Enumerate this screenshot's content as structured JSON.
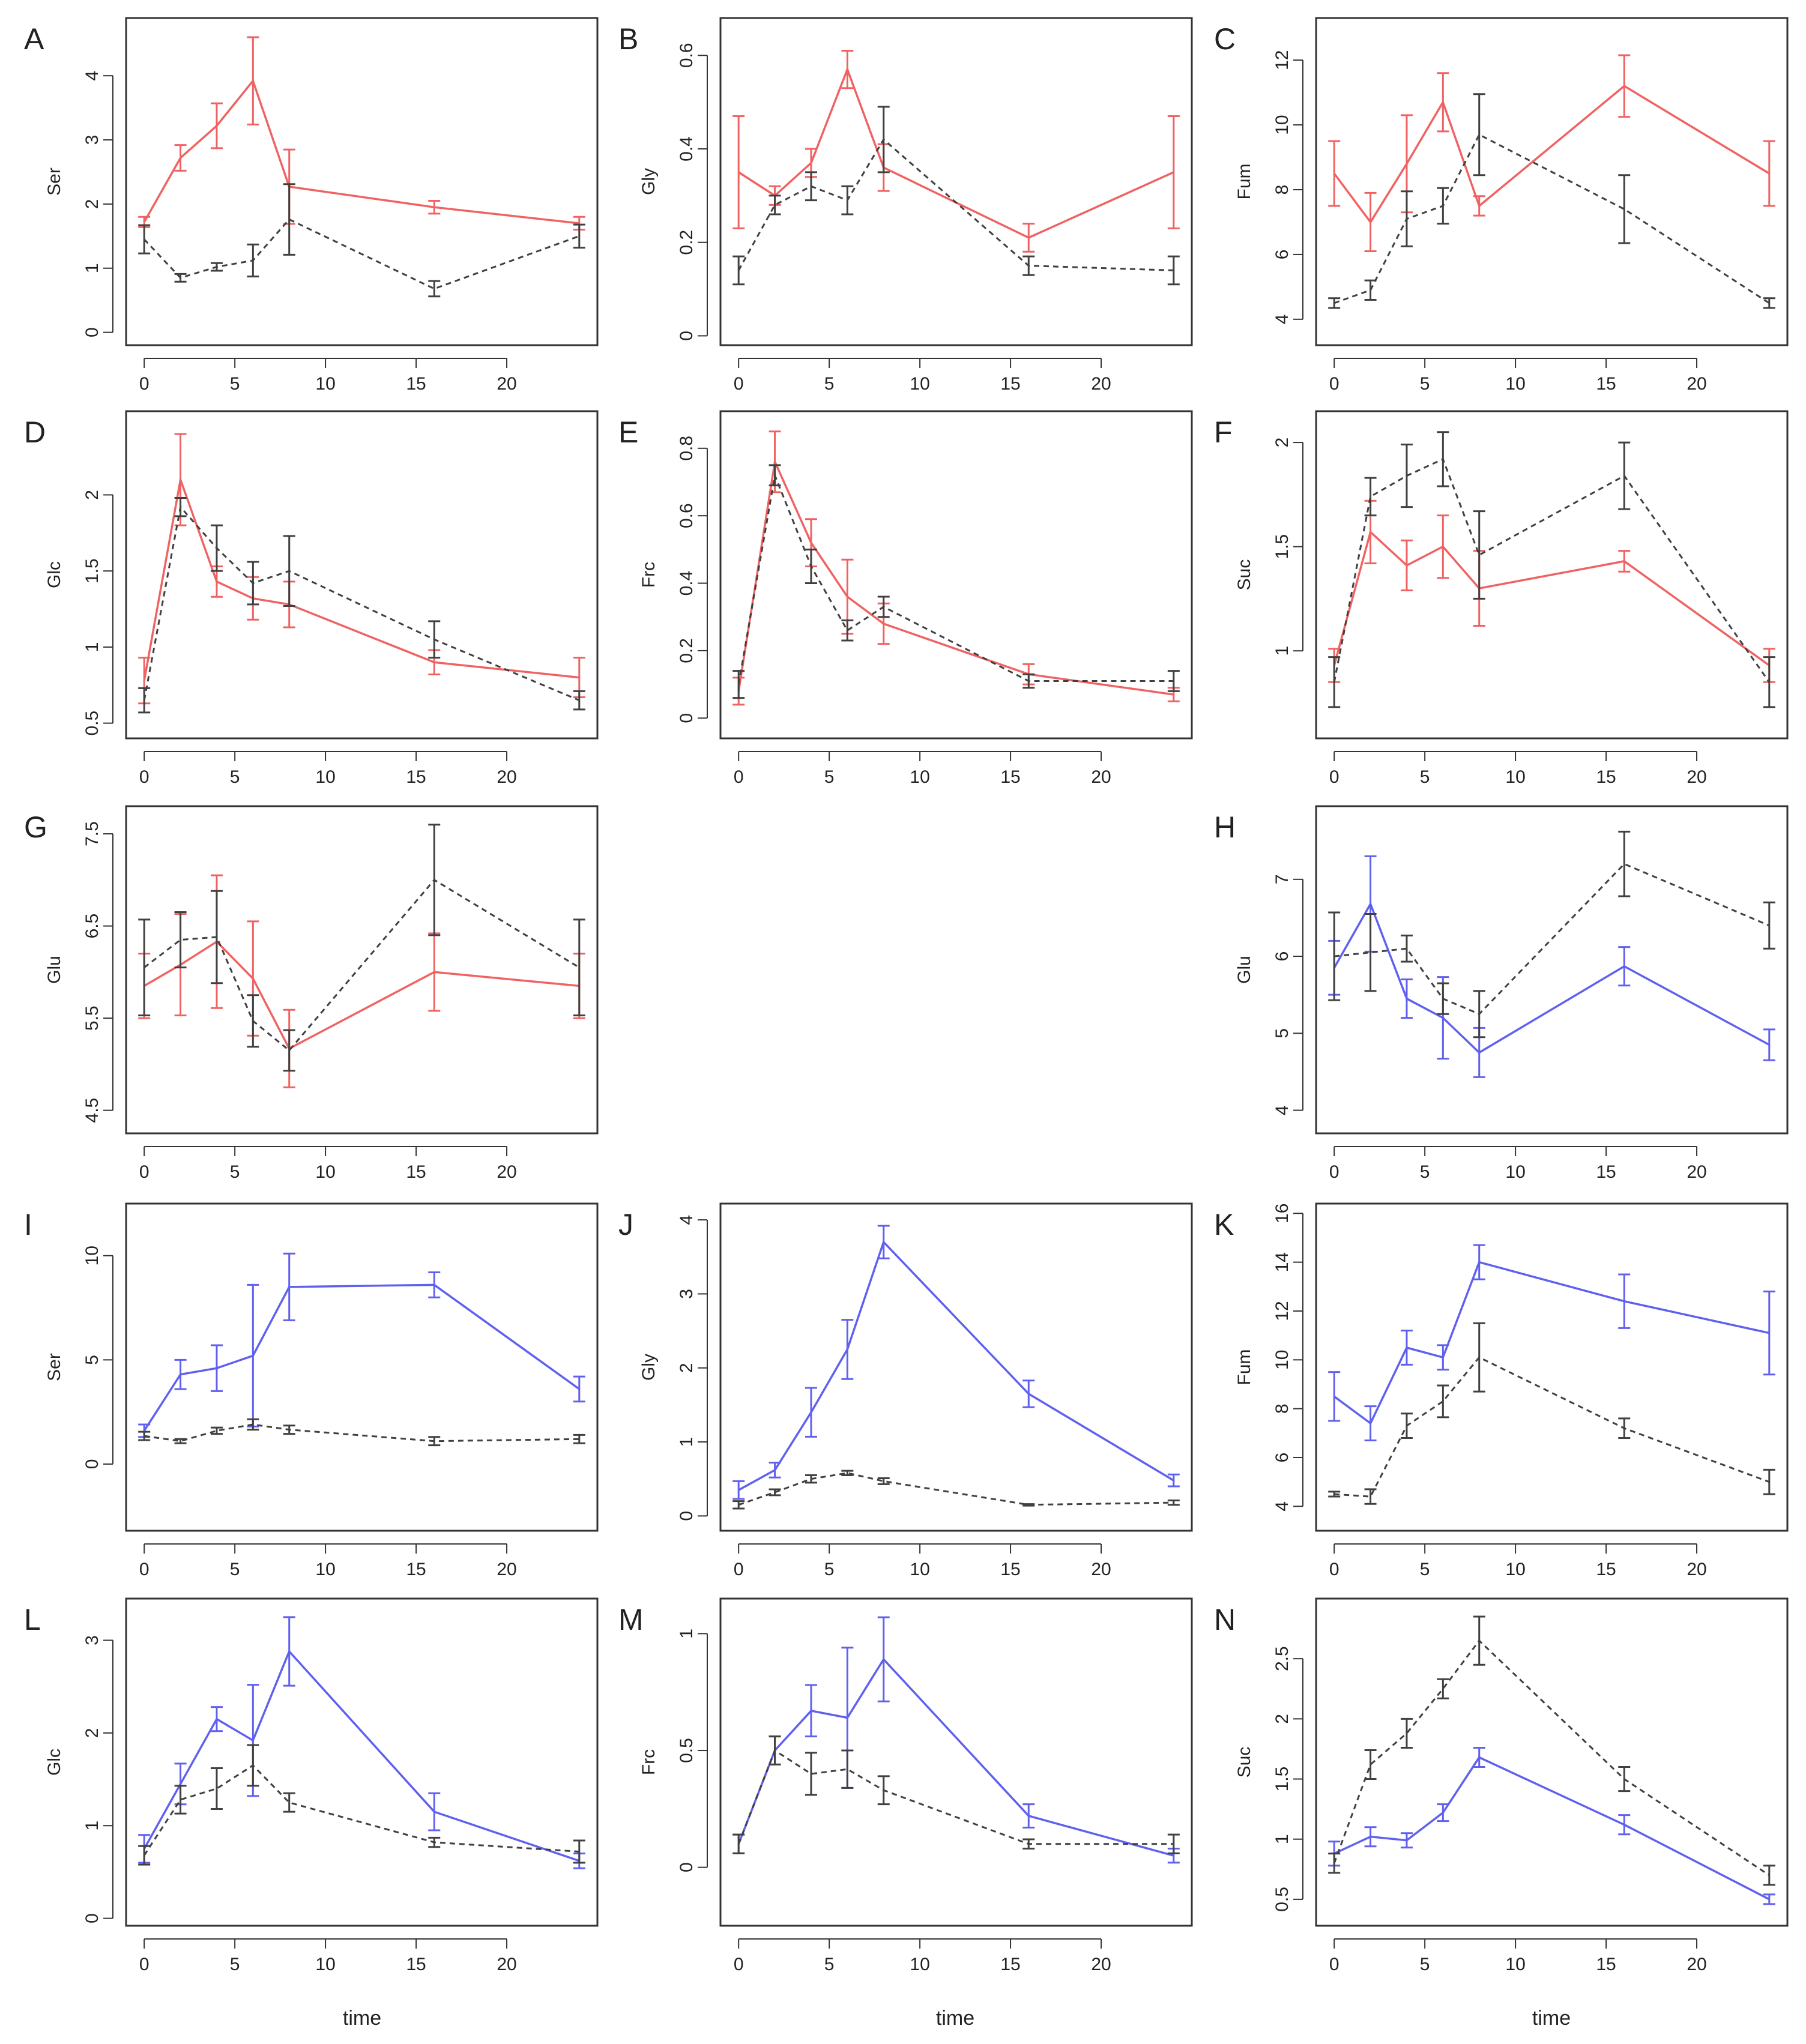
{
  "colors": {
    "treated": "#f06262",
    "treated_blue": "#6060f0",
    "control": "#404040",
    "frame": "#333333"
  },
  "x_label": "time",
  "chart_data": [
    {
      "panel": "A",
      "type": "line",
      "ylabel": "Ser",
      "x": [
        0,
        2,
        4,
        6,
        8,
        16,
        24
      ],
      "xticks": [
        0,
        5,
        10,
        15,
        20
      ],
      "xlim": [
        -1,
        25
      ],
      "ylim": [
        -0.2,
        4.9
      ],
      "yticks": [
        0,
        1,
        2,
        3,
        4
      ],
      "series": [
        {
          "style": "treated",
          "color": "#f06262",
          "values": [
            1.72,
            2.72,
            3.22,
            3.92,
            2.27,
            1.95,
            1.7
          ],
          "errors": [
            0.08,
            0.2,
            0.35,
            0.68,
            0.58,
            0.1,
            0.1
          ]
        },
        {
          "style": "control",
          "color": "#404040",
          "values": [
            1.45,
            0.85,
            1.02,
            1.12,
            1.76,
            0.68,
            1.5
          ],
          "errors": [
            0.22,
            0.06,
            0.06,
            0.25,
            0.55,
            0.12,
            0.18
          ]
        }
      ]
    },
    {
      "panel": "B",
      "type": "line",
      "ylabel": "Gly",
      "x": [
        0,
        2,
        4,
        6,
        8,
        16,
        24
      ],
      "xticks": [
        0,
        5,
        10,
        15,
        20
      ],
      "xlim": [
        -1,
        25
      ],
      "ylim": [
        -0.02,
        0.68
      ],
      "yticks": [
        0.0,
        0.2,
        0.4,
        0.6
      ],
      "series": [
        {
          "style": "treated",
          "color": "#f06262",
          "values": [
            0.35,
            0.3,
            0.37,
            0.57,
            0.36,
            0.21,
            0.35
          ],
          "errors": [
            0.12,
            0.02,
            0.03,
            0.04,
            0.05,
            0.03,
            0.12
          ]
        },
        {
          "style": "control",
          "color": "#404040",
          "values": [
            0.14,
            0.28,
            0.32,
            0.29,
            0.42,
            0.15,
            0.14
          ],
          "errors": [
            0.03,
            0.02,
            0.03,
            0.03,
            0.07,
            0.02,
            0.03
          ]
        }
      ]
    },
    {
      "panel": "C",
      "type": "line",
      "ylabel": "Fum",
      "x": [
        0,
        2,
        4,
        6,
        8,
        16,
        24
      ],
      "xticks": [
        0,
        5,
        10,
        15,
        20
      ],
      "xlim": [
        -1,
        25
      ],
      "ylim": [
        3.2,
        13.3
      ],
      "yticks": [
        4,
        6,
        8,
        10,
        12
      ],
      "series": [
        {
          "style": "treated",
          "color": "#f06262",
          "values": [
            8.5,
            7,
            8.8,
            10.7,
            7.5,
            11.2,
            8.5
          ],
          "errors": [
            1.0,
            0.9,
            1.5,
            0.9,
            0.3,
            0.95,
            1.0
          ]
        },
        {
          "style": "control",
          "color": "#404040",
          "values": [
            4.5,
            4.9,
            7.1,
            7.5,
            9.7,
            7.4,
            4.5
          ],
          "errors": [
            0.15,
            0.3,
            0.85,
            0.55,
            1.25,
            1.05,
            0.15
          ]
        }
      ]
    },
    {
      "panel": "D",
      "type": "line",
      "ylabel": "Glc",
      "x": [
        0,
        2,
        4,
        6,
        8,
        16,
        24
      ],
      "xticks": [
        0,
        5,
        10,
        15,
        20
      ],
      "xlim": [
        -1,
        25
      ],
      "ylim": [
        0.4,
        2.55
      ],
      "yticks": [
        0.5,
        1.0,
        1.5,
        2.0
      ],
      "series": [
        {
          "style": "treated",
          "color": "#f06262",
          "values": [
            0.78,
            2.1,
            1.43,
            1.32,
            1.28,
            0.9,
            0.8
          ],
          "errors": [
            0.15,
            0.3,
            0.1,
            0.14,
            0.15,
            0.08,
            0.13
          ]
        },
        {
          "style": "control",
          "color": "#404040",
          "values": [
            0.65,
            1.92,
            1.65,
            1.42,
            1.5,
            1.05,
            0.65
          ],
          "errors": [
            0.08,
            0.06,
            0.15,
            0.14,
            0.23,
            0.12,
            0.06
          ]
        }
      ]
    },
    {
      "panel": "E",
      "type": "line",
      "ylabel": "Frc",
      "x": [
        0,
        2,
        4,
        6,
        8,
        16,
        24
      ],
      "xticks": [
        0,
        5,
        10,
        15,
        20
      ],
      "xlim": [
        -1,
        25
      ],
      "ylim": [
        -0.06,
        0.91
      ],
      "yticks": [
        0.0,
        0.2,
        0.4,
        0.6,
        0.8
      ],
      "series": [
        {
          "style": "treated",
          "color": "#f06262",
          "values": [
            0.08,
            0.76,
            0.52,
            0.36,
            0.28,
            0.13,
            0.07
          ],
          "errors": [
            0.04,
            0.09,
            0.07,
            0.11,
            0.06,
            0.03,
            0.02
          ]
        },
        {
          "style": "control",
          "color": "#404040",
          "values": [
            0.1,
            0.72,
            0.45,
            0.26,
            0.33,
            0.11,
            0.11
          ],
          "errors": [
            0.04,
            0.03,
            0.05,
            0.03,
            0.03,
            0.02,
            0.03
          ]
        }
      ]
    },
    {
      "panel": "F",
      "type": "line",
      "ylabel": "Suc",
      "x": [
        0,
        2,
        4,
        6,
        8,
        16,
        24
      ],
      "xticks": [
        0,
        5,
        10,
        15,
        20
      ],
      "xlim": [
        -1,
        25
      ],
      "ylim": [
        0.58,
        2.15
      ],
      "yticks": [
        1.0,
        1.5,
        2.0
      ],
      "series": [
        {
          "style": "treated",
          "color": "#f06262",
          "values": [
            0.93,
            1.57,
            1.41,
            1.5,
            1.3,
            1.43,
            0.93
          ],
          "errors": [
            0.08,
            0.15,
            0.12,
            0.15,
            0.18,
            0.05,
            0.08
          ]
        },
        {
          "style": "control",
          "color": "#404040",
          "values": [
            0.85,
            1.74,
            1.84,
            1.92,
            1.46,
            1.84,
            0.85
          ],
          "errors": [
            0.12,
            0.09,
            0.15,
            0.13,
            0.21,
            0.16,
            0.12
          ]
        }
      ]
    },
    {
      "panel": "G",
      "type": "line",
      "ylabel": "Glu",
      "x": [
        0,
        2,
        4,
        6,
        8,
        16,
        24
      ],
      "xticks": [
        0,
        5,
        10,
        15,
        20
      ],
      "xlim": [
        -1,
        25
      ],
      "ylim": [
        4.25,
        7.8
      ],
      "yticks": [
        4.5,
        5.5,
        6.5,
        7.5
      ],
      "series": [
        {
          "style": "treated",
          "color": "#f06262",
          "values": [
            5.85,
            6.08,
            6.33,
            5.93,
            5.17,
            6.0,
            5.85
          ],
          "errors": [
            0.35,
            0.55,
            0.72,
            0.62,
            0.42,
            0.42,
            0.35
          ]
        },
        {
          "style": "control",
          "color": "#404040",
          "values": [
            6.05,
            6.35,
            6.38,
            5.47,
            5.15,
            7.0,
            6.05
          ],
          "errors": [
            0.52,
            0.3,
            0.5,
            0.28,
            0.22,
            0.6,
            0.52
          ]
        }
      ]
    },
    {
      "panel": "H",
      "type": "line",
      "ylabel": "Glu",
      "x": [
        0,
        2,
        4,
        6,
        8,
        16,
        24
      ],
      "xticks": [
        0,
        5,
        10,
        15,
        20
      ],
      "xlim": [
        -1,
        25
      ],
      "ylim": [
        3.7,
        7.95
      ],
      "yticks": [
        4,
        5,
        6,
        7
      ],
      "series": [
        {
          "style": "treated",
          "color": "#6060f0",
          "values": [
            5.85,
            6.68,
            5.45,
            5.2,
            4.75,
            5.87,
            4.85
          ],
          "errors": [
            0.35,
            0.62,
            0.25,
            0.53,
            0.32,
            0.25,
            0.2
          ]
        },
        {
          "style": "control",
          "color": "#404040",
          "values": [
            6.0,
            6.05,
            6.1,
            5.45,
            5.25,
            7.2,
            6.4
          ],
          "errors": [
            0.57,
            0.5,
            0.17,
            0.2,
            0.3,
            0.42,
            0.3
          ]
        }
      ]
    },
    {
      "panel": "I",
      "type": "line",
      "ylabel": "Ser",
      "x": [
        0,
        2,
        4,
        6,
        8,
        16,
        24
      ],
      "xticks": [
        0,
        5,
        10,
        15,
        20
      ],
      "xlim": [
        -1,
        25
      ],
      "ylim": [
        -3.2,
        12.5
      ],
      "yticks": [
        0,
        5,
        10
      ],
      "series": [
        {
          "style": "treated",
          "color": "#6060f0",
          "values": [
            1.6,
            4.3,
            4.6,
            5.2,
            8.5,
            8.6,
            3.6
          ],
          "errors": [
            0.3,
            0.7,
            1.1,
            3.4,
            1.6,
            0.6,
            0.6
          ]
        },
        {
          "style": "control",
          "color": "#404040",
          "values": [
            1.35,
            1.1,
            1.6,
            1.9,
            1.65,
            1.1,
            1.2
          ],
          "errors": [
            0.2,
            0.1,
            0.15,
            0.25,
            0.2,
            0.2,
            0.2
          ]
        }
      ]
    },
    {
      "panel": "J",
      "type": "line",
      "ylabel": "Gly",
      "x": [
        0,
        2,
        4,
        6,
        8,
        16,
        24
      ],
      "xticks": [
        0,
        5,
        10,
        15,
        20
      ],
      "xlim": [
        -1,
        25
      ],
      "ylim": [
        -0.2,
        4.22
      ],
      "yticks": [
        0,
        1,
        2,
        3,
        4
      ],
      "series": [
        {
          "style": "treated",
          "color": "#6060f0",
          "values": [
            0.35,
            0.62,
            1.4,
            2.25,
            3.7,
            1.65,
            0.48
          ],
          "errors": [
            0.12,
            0.1,
            0.33,
            0.4,
            0.22,
            0.18,
            0.08
          ]
        },
        {
          "style": "control",
          "color": "#404040",
          "values": [
            0.15,
            0.32,
            0.5,
            0.58,
            0.47,
            0.15,
            0.18
          ],
          "errors": [
            0.05,
            0.04,
            0.05,
            0.03,
            0.04,
            0.01,
            0.03
          ]
        }
      ]
    },
    {
      "panel": "K",
      "type": "line",
      "ylabel": "Fum",
      "x": [
        0,
        2,
        4,
        6,
        8,
        16,
        24
      ],
      "xticks": [
        0,
        5,
        10,
        15,
        20
      ],
      "xlim": [
        -1,
        25
      ],
      "ylim": [
        3.0,
        16.4
      ],
      "yticks": [
        4,
        6,
        8,
        10,
        12,
        14,
        16
      ],
      "series": [
        {
          "style": "treated",
          "color": "#6060f0",
          "values": [
            8.5,
            7.4,
            10.5,
            10.1,
            14.0,
            12.4,
            11.1
          ],
          "errors": [
            1.0,
            0.7,
            0.7,
            0.5,
            0.7,
            1.1,
            1.7
          ]
        },
        {
          "style": "control",
          "color": "#404040",
          "values": [
            4.5,
            4.4,
            7.3,
            8.3,
            10.1,
            7.2,
            5.0
          ],
          "errors": [
            0.1,
            0.3,
            0.5,
            0.65,
            1.4,
            0.4,
            0.5
          ]
        }
      ]
    },
    {
      "panel": "L",
      "type": "line",
      "ylabel": "Glc",
      "x": [
        0,
        2,
        4,
        6,
        8,
        16,
        24
      ],
      "xticks": [
        0,
        5,
        10,
        15,
        20
      ],
      "xlim": [
        -1,
        25
      ],
      "ylim": [
        -0.08,
        3.45
      ],
      "yticks": [
        0.0,
        1.0,
        2.0,
        3.0
      ],
      "series": [
        {
          "style": "treated",
          "color": "#6060f0",
          "values": [
            0.75,
            1.45,
            2.15,
            1.92,
            2.88,
            1.15,
            0.62
          ],
          "errors": [
            0.15,
            0.22,
            0.13,
            0.6,
            0.37,
            0.2,
            0.08
          ]
        },
        {
          "style": "control",
          "color": "#404040",
          "values": [
            0.68,
            1.28,
            1.4,
            1.65,
            1.25,
            0.82,
            0.72
          ],
          "errors": [
            0.1,
            0.15,
            0.22,
            0.22,
            0.1,
            0.05,
            0.12
          ]
        }
      ]
    },
    {
      "panel": "M",
      "type": "line",
      "ylabel": "Frc",
      "x": [
        0,
        2,
        4,
        6,
        8,
        16,
        24
      ],
      "xticks": [
        0,
        5,
        10,
        15,
        20
      ],
      "xlim": [
        -1,
        25
      ],
      "ylim": [
        -0.25,
        1.15
      ],
      "yticks": [
        0.0,
        0.5,
        1.0
      ],
      "series": [
        {
          "style": "treated",
          "color": "#6060f0",
          "values": [
            0.1,
            0.5,
            0.67,
            0.64,
            0.89,
            0.22,
            0.05
          ],
          "errors": [
            0.04,
            0.06,
            0.11,
            0.3,
            0.18,
            0.05,
            0.03
          ]
        },
        {
          "style": "control",
          "color": "#404040",
          "values": [
            0.1,
            0.5,
            0.4,
            0.42,
            0.33,
            0.1,
            0.1
          ],
          "errors": [
            0.04,
            0.06,
            0.09,
            0.08,
            0.06,
            0.02,
            0.04
          ]
        }
      ]
    },
    {
      "panel": "N",
      "type": "line",
      "ylabel": "Suc",
      "x": [
        0,
        2,
        4,
        6,
        8,
        16,
        24
      ],
      "xticks": [
        0,
        5,
        10,
        15,
        20
      ],
      "xlim": [
        -1,
        25
      ],
      "ylim": [
        0.28,
        3.0
      ],
      "yticks": [
        0.5,
        1.0,
        1.5,
        2.0,
        2.5
      ],
      "series": [
        {
          "style": "treated",
          "color": "#6060f0",
          "values": [
            0.88,
            1.02,
            0.99,
            1.22,
            1.68,
            1.12,
            0.5
          ],
          "errors": [
            0.1,
            0.08,
            0.06,
            0.07,
            0.08,
            0.08,
            0.04
          ]
        },
        {
          "style": "control",
          "color": "#404040",
          "values": [
            0.8,
            1.62,
            1.88,
            2.25,
            2.65,
            1.5,
            0.7
          ],
          "errors": [
            0.08,
            0.12,
            0.12,
            0.08,
            0.2,
            0.1,
            0.08
          ]
        }
      ]
    }
  ]
}
